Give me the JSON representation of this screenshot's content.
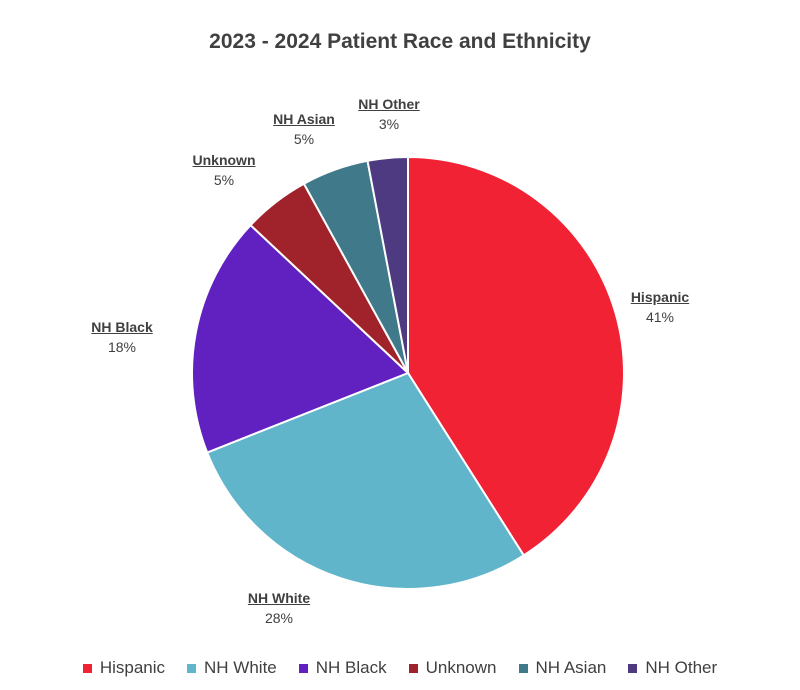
{
  "chart_data": {
    "type": "pie",
    "title": "2023 - 2024 Patient Race and Ethnicity",
    "slices": [
      {
        "name": "Hispanic",
        "label": "41%",
        "value": 41,
        "color": "#F22235"
      },
      {
        "name": "NH White",
        "label": "28%",
        "value": 28,
        "color": "#60B5CA"
      },
      {
        "name": "NH Black",
        "label": "18%",
        "value": 18,
        "color": "#6120C0"
      },
      {
        "name": "Unknown",
        "label": "5%",
        "value": 5,
        "color": "#A0222B"
      },
      {
        "name": "NH Asian",
        "label": "5%",
        "value": 5,
        "color": "#407A8A"
      },
      {
        "name": "NH Other",
        "label": "3%",
        "value": 3,
        "color": "#4E3A80"
      }
    ],
    "legend_position": "bottom"
  }
}
